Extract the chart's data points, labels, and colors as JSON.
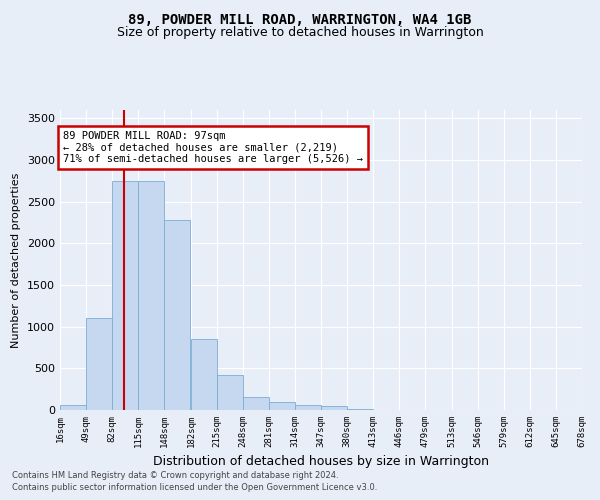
{
  "title": "89, POWDER MILL ROAD, WARRINGTON, WA4 1GB",
  "subtitle": "Size of property relative to detached houses in Warrington",
  "xlabel": "Distribution of detached houses by size in Warrington",
  "ylabel": "Number of detached properties",
  "footer_line1": "Contains HM Land Registry data © Crown copyright and database right 2024.",
  "footer_line2": "Contains public sector information licensed under the Open Government Licence v3.0.",
  "annotation_line1": "89 POWDER MILL ROAD: 97sqm",
  "annotation_line2": "← 28% of detached houses are smaller (2,219)",
  "annotation_line3": "71% of semi-detached houses are larger (5,526) →",
  "bar_color": "#c5d8ef",
  "bar_edge_color": "#7aadd4",
  "redline_color": "#cc0000",
  "redline_x": 97,
  "xlim_left": 16,
  "xlim_right": 678,
  "ylim_top": 3600,
  "bin_edges": [
    16,
    49,
    82,
    115,
    148,
    182,
    215,
    248,
    281,
    314,
    347,
    380,
    413,
    446,
    479,
    513,
    546,
    579,
    612,
    645,
    678
  ],
  "bin_heights": [
    55,
    1100,
    2750,
    2750,
    2280,
    850,
    420,
    160,
    100,
    55,
    45,
    10,
    5,
    3,
    2,
    1,
    1,
    0,
    0,
    0
  ],
  "tick_labels": [
    "16sqm",
    "49sqm",
    "82sqm",
    "115sqm",
    "148sqm",
    "182sqm",
    "215sqm",
    "248sqm",
    "281sqm",
    "314sqm",
    "347sqm",
    "380sqm",
    "413sqm",
    "446sqm",
    "479sqm",
    "513sqm",
    "546sqm",
    "579sqm",
    "612sqm",
    "645sqm",
    "678sqm"
  ],
  "background_color": "#e8eef8",
  "plot_bg_color": "#e8eef8",
  "grid_color": "#ffffff",
  "yticks": [
    0,
    500,
    1000,
    1500,
    2000,
    2500,
    3000,
    3500
  ]
}
